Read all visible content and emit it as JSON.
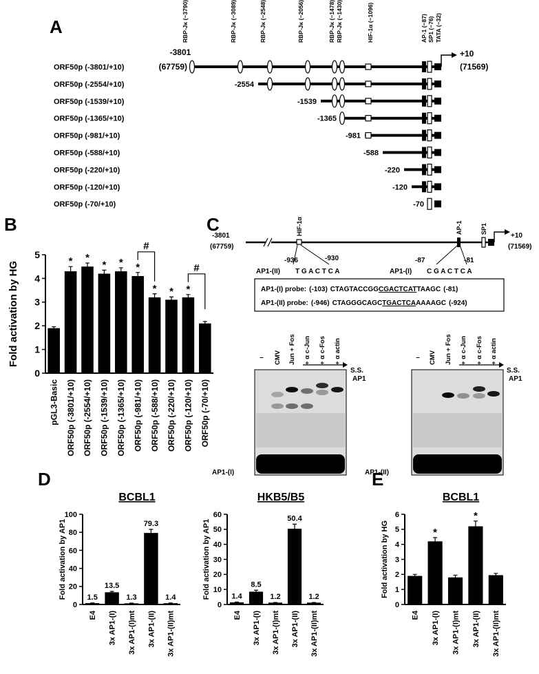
{
  "labels": {
    "a": "A",
    "b": "B",
    "c": "C",
    "d": "D",
    "e": "E"
  },
  "panel_a": {
    "left_label": "-3801",
    "left_coord": "(67759)",
    "right_label": "+10",
    "right_coord": "(71569)",
    "sites": [
      {
        "label": "RBP-Jκ (−3790)",
        "kind": "ellipse"
      },
      {
        "label": "RBP-Jκ (−3089)",
        "kind": "ellipse"
      },
      {
        "label": "RBP-Jκ (−2548)",
        "kind": "ellipse"
      },
      {
        "label": "RBP-Jκ (−2056)",
        "kind": "ellipse"
      },
      {
        "label": "RBP-Jκ (−1478)",
        "kind": "ellipse"
      },
      {
        "label": "RBP-Jκ (−1430)",
        "kind": "ellipse"
      },
      {
        "label": "HIF-1α (−1096)",
        "kind": "white-box"
      },
      {
        "label": "AP-1 (−87)",
        "kind": "black-bar"
      },
      {
        "label": "SP1 (−76)",
        "kind": "white-bar"
      },
      {
        "label": "TATA (−32)",
        "kind": "black-box"
      }
    ],
    "constructs": [
      {
        "name": "ORF50p (-3801/+10)"
      },
      {
        "name": "ORF50p (-2554/+10)",
        "start": "-2554"
      },
      {
        "name": "ORF50p (-1539/+10)",
        "start": "-1539"
      },
      {
        "name": "ORF50p (-1365/+10)",
        "start": "-1365"
      },
      {
        "name": "ORF50p (-981/+10)",
        "start": "-981"
      },
      {
        "name": "ORF50p (-588/+10)",
        "start": "-588"
      },
      {
        "name": "ORF50p (-220/+10)",
        "start": "-220"
      },
      {
        "name": "ORF50p (-120/+10)",
        "start": "-120"
      },
      {
        "name": "ORF50p (-70/+10)",
        "start": "-70"
      }
    ]
  },
  "chart_data": [
    {
      "type": "bar",
      "ylabel": "Fold activation by HG",
      "categories": [
        "pGL3-Basic",
        "ORF50p (-3801/+10)",
        "ORF50p (-2554/+10)",
        "ORF50p (-1539/+10)",
        "ORF50p (-1365/+10)",
        "ORF50p (-981/+10)",
        "ORF50p (-588/+10)",
        "ORF50p (-220/+10)",
        "ORF50p (-120/+10)",
        "ORF50p (-70/+10)"
      ],
      "values": [
        1.9,
        4.3,
        4.5,
        4.2,
        4.3,
        4.1,
        3.2,
        3.1,
        3.2,
        2.1
      ],
      "errors": [
        0.06,
        0.2,
        0.15,
        0.15,
        0.15,
        0.15,
        0.15,
        0.12,
        0.12,
        0.08
      ],
      "color": "#000000",
      "ylim": [
        0,
        5
      ],
      "yticks": [
        0,
        1,
        2,
        3,
        4,
        5
      ],
      "annotations": [
        {
          "category": "ORF50p (-3801/+10)",
          "text": "*"
        },
        {
          "category": "ORF50p (-2554/+10)",
          "text": "*"
        },
        {
          "category": "ORF50p (-1539/+10)",
          "text": "*"
        },
        {
          "category": "ORF50p (-1365/+10)",
          "text": "*"
        },
        {
          "category": "ORF50p (-981/+10)",
          "text": "*"
        },
        {
          "category": "ORF50p (-588/+10)",
          "text": "*"
        },
        {
          "category": "ORF50p (-220/+10)",
          "text": "*"
        },
        {
          "category": "ORF50p (-120/+10)",
          "text": "*"
        }
      ],
      "brackets": [
        {
          "from": "ORF50p (-981/+10)",
          "to": "ORF50p (-588/+10)",
          "text": "#"
        },
        {
          "from": "ORF50p (-120/+10)",
          "to": "ORF50p (-70/+10)",
          "text": "#"
        }
      ]
    },
    {
      "type": "bar",
      "title": "BCBL1",
      "ylabel": "Fold activation by AP1",
      "categories": [
        "E4",
        "3x AP1-(I)",
        "3x AP1-(I)mt",
        "3x AP1-(II)",
        "3x AP1-(II)mt"
      ],
      "values": [
        1.5,
        13.5,
        1.3,
        79.3,
        1.4
      ],
      "errors": [
        0.2,
        1,
        0.2,
        4,
        0.2
      ],
      "color": "#000000",
      "ylim": [
        0,
        100
      ],
      "yticks": [
        0,
        20,
        40,
        60,
        80,
        100
      ],
      "data_labels": true
    },
    {
      "type": "bar",
      "title": "HKB5/B5",
      "ylabel": "Fold activation by AP1",
      "categories": [
        "E4",
        "3x AP1-(I)",
        "3x AP1-(I)mt",
        "3x AP1-(II)",
        "3x AP1-(II)mt"
      ],
      "values": [
        1.4,
        8.5,
        1.2,
        50.4,
        1.2
      ],
      "errors": [
        0.2,
        1,
        0.1,
        3,
        0.1
      ],
      "color": "#000000",
      "ylim": [
        0,
        60
      ],
      "yticks": [
        0,
        10,
        20,
        30,
        40,
        50,
        60
      ],
      "data_labels": true
    },
    {
      "type": "bar",
      "title": "BCBL1",
      "ylabel": "Fold activation by HG",
      "categories": [
        "E4",
        "3x AP1-(I)",
        "3x AP1-(I)mt",
        "3x AP1-(II)",
        "3x AP1-(II)mt"
      ],
      "values": [
        1.9,
        4.2,
        1.8,
        5.2,
        1.95
      ],
      "errors": [
        0.1,
        0.25,
        0.15,
        0.35,
        0.12
      ],
      "color": "#000000",
      "ylim": [
        0,
        6
      ],
      "yticks": [
        0,
        1,
        2,
        3,
        4,
        5,
        6
      ],
      "annotations": [
        {
          "category": "3x AP1-(I)",
          "text": "*"
        },
        {
          "category": "3x AP1-(II)",
          "text": "*"
        }
      ]
    }
  ],
  "panel_c": {
    "map": {
      "left_label": "-3801",
      "left_coord": "(67759)",
      "right_label": "+10",
      "right_coord": "(71569)",
      "hif": "HIF-1α",
      "ap1": "AP-1",
      "sp1": "SP1",
      "site2": {
        "name": "AP1-(II)",
        "left": "-936",
        "right": "-930",
        "seq": "T G A C T C A"
      },
      "site1": {
        "name": "AP1-(I)",
        "left": "-87",
        "right": "-81",
        "seq": "C G A C T C A"
      }
    },
    "probes": [
      {
        "name": "AP1-(I) probe:",
        "start": "(-103)",
        "before": "CTAGTACCGG",
        "motif": "CGACTCAT",
        "after": "TAAGC",
        "end": "(-81)"
      },
      {
        "name": "AP1-(II) probe:",
        "start": "(-946)",
        "before": "CTAGGGCAGC",
        "motif": "TGACTCA",
        "after": "AAAAGC",
        "end": "(-924)"
      }
    ],
    "gels": [
      {
        "lanes": [
          "–",
          "CMV",
          "Jun + Fos",
          "+ α c-Jun",
          "+ α c-Fos",
          "+ α actin"
        ],
        "upper": "S.S.",
        "lower": "AP1",
        "probe": "AP1-(I)"
      },
      {
        "lanes": [
          "–",
          "CMV",
          "Jun + Fos",
          "+ α c-Jun",
          "+ α c-Fos",
          "+ α actin"
        ],
        "upper": "S.S.",
        "lower": "AP1",
        "probe": "AP1-(II)"
      }
    ]
  }
}
